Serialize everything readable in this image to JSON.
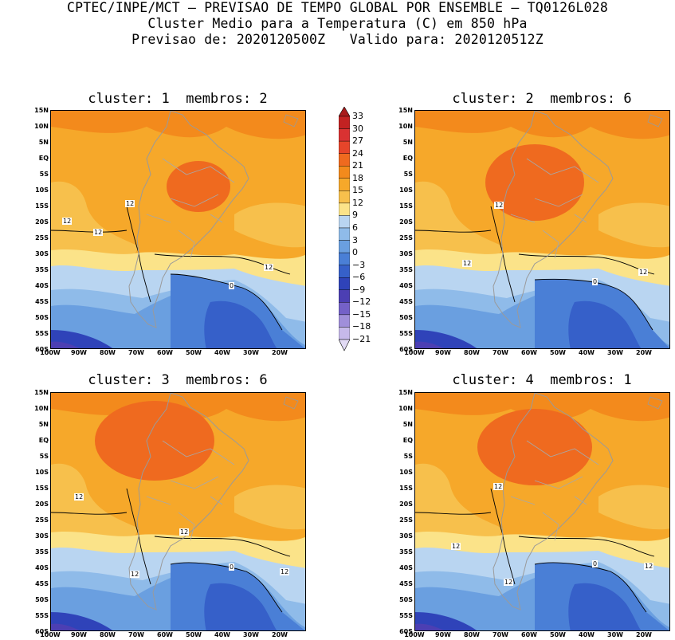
{
  "header": {
    "line1": "CPTEC/INPE/MCT — PREVISAO DE TEMPO GLOBAL POR ENSEMBLE — TQ0126L028",
    "line2": "Cluster Medio para a Temperatura (C) em 850 hPa",
    "line3": "Previsao de: 2020120500Z   Valido para: 2020120512Z"
  },
  "panels": [
    {
      "title": "cluster: 1  membros: 2",
      "contours": [
        "12",
        "12",
        "12",
        "12",
        "0"
      ]
    },
    {
      "title": "cluster: 2  membros: 6",
      "contours": [
        "12",
        "12",
        "12",
        "0"
      ]
    },
    {
      "title": "cluster: 3  membros: 6",
      "contours": [
        "12",
        "12",
        "12",
        "12",
        "0"
      ]
    },
    {
      "title": "cluster: 4  membros: 1",
      "contours": [
        "12",
        "12",
        "12",
        "12",
        "0"
      ]
    }
  ],
  "axes": {
    "lat_ticks": [
      "15N",
      "10N",
      "5N",
      "EQ",
      "5S",
      "10S",
      "15S",
      "20S",
      "25S",
      "30S",
      "35S",
      "40S",
      "45S",
      "50S",
      "55S",
      "60S"
    ],
    "lon_ticks": [
      "100W",
      "90W",
      "80W",
      "70W",
      "60W",
      "50W",
      "40W",
      "30W",
      "20W"
    ]
  },
  "colorbar": {
    "labels": [
      "33",
      "30",
      "27",
      "24",
      "21",
      "18",
      "15",
      "12",
      "9",
      "6",
      "3",
      "0",
      "−3",
      "−6",
      "−9",
      "−12",
      "−15",
      "−18",
      "−21"
    ],
    "colors": [
      "#a81b1b",
      "#c22222",
      "#d93232",
      "#e6452a",
      "#ef6a1f",
      "#f38a1c",
      "#f6a82a",
      "#f7c04c",
      "#fbe389",
      "#b9d5f1",
      "#8fbbe9",
      "#6a9fe0",
      "#4a7fd6",
      "#3660c9",
      "#2f43b9",
      "#4c3fb3",
      "#7461c8",
      "#a08fda",
      "#c6b9ea",
      "#e2dbf5"
    ]
  }
}
